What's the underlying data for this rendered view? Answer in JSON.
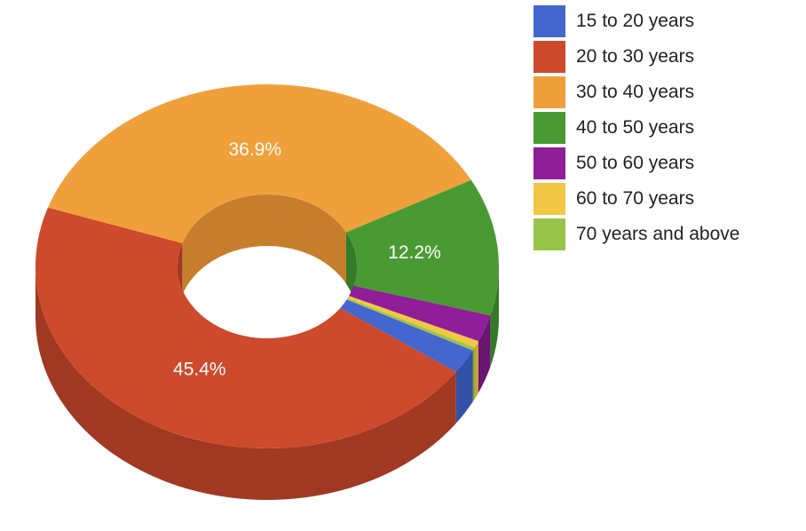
{
  "chart_data": {
    "type": "pie",
    "variant": "3d-donut",
    "categories": [
      "15 to 20 years",
      "20 to 30 years",
      "30 to 40 years",
      "40 to 50 years",
      "50 to 60 years",
      "60 to 70 years",
      "70 years and above"
    ],
    "values": [
      2.2,
      45.4,
      36.9,
      12.2,
      2.4,
      0.6,
      0.3
    ],
    "colors": [
      "#4366cf",
      "#cd4a2c",
      "#f0a03b",
      "#4a9a34",
      "#8f1e98",
      "#f2c744",
      "#9ac548"
    ],
    "side_colors": [
      "#3352a6",
      "#a03822",
      "#c67e2c",
      "#357a27",
      "#6a1572",
      "#c9a237",
      "#7ba03b"
    ],
    "slice_labels": [
      "",
      "45.4%",
      "36.9%",
      "12.2%",
      "",
      "",
      ""
    ],
    "legend_position": "right"
  }
}
